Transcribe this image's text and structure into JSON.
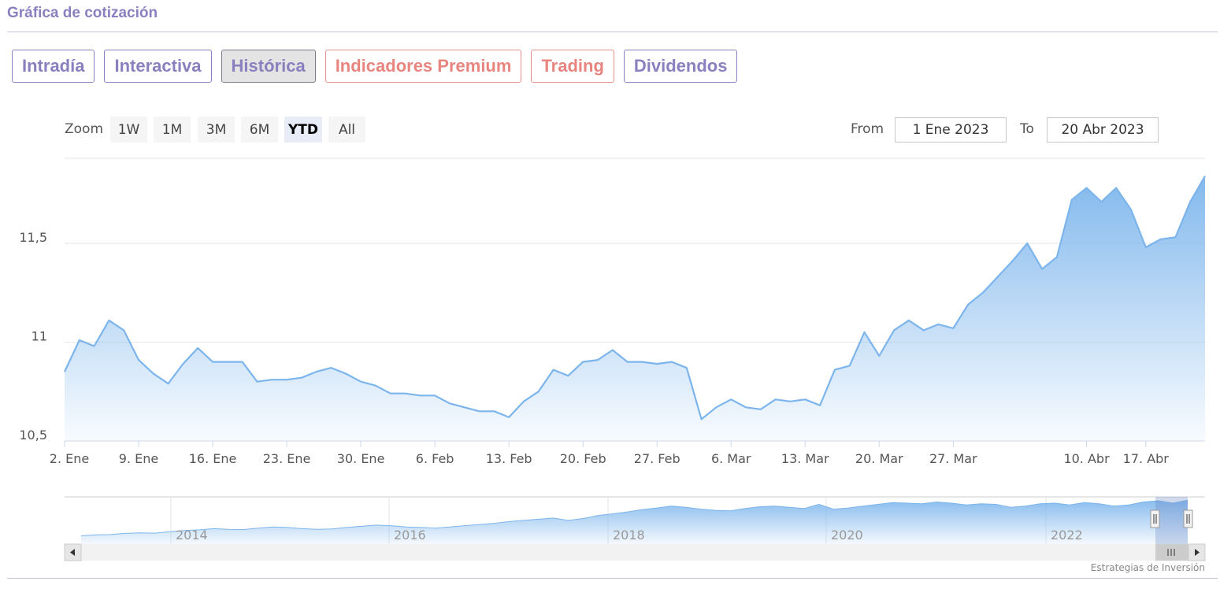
{
  "header": {
    "title": "Gráfica de cotización"
  },
  "tabs": [
    {
      "label": "Intradía",
      "active": false,
      "premium": false
    },
    {
      "label": "Interactiva",
      "active": false,
      "premium": false
    },
    {
      "label": "Histórica",
      "active": true,
      "premium": false
    },
    {
      "label": "Indicadores Premium",
      "active": false,
      "premium": true
    },
    {
      "label": "Trading",
      "active": false,
      "premium": true
    },
    {
      "label": "Dividendos",
      "active": false,
      "premium": false
    }
  ],
  "zoom": {
    "label": "Zoom",
    "buttons": [
      "1W",
      "1M",
      "3M",
      "6M",
      "YTD",
      "All"
    ],
    "selected": "YTD"
  },
  "range": {
    "from_label": "From",
    "from_value": "1 Ene 2023",
    "to_label": "To",
    "to_value": "20 Abr 2023"
  },
  "credits": "Estrategias de Inversión",
  "colors": {
    "accent": "#8a80bf",
    "premium": "#e8857f",
    "series": "#7cb5ec"
  },
  "chart_data": {
    "type": "area",
    "grid": true,
    "yticks": [
      "10,5",
      "11",
      "11,5"
    ],
    "ylim": [
      10.5,
      11.93
    ],
    "xticks": [
      {
        "label": "2. Ene",
        "idx": 0
      },
      {
        "label": "9. Ene",
        "idx": 5
      },
      {
        "label": "16. Ene",
        "idx": 10
      },
      {
        "label": "23. Ene",
        "idx": 15
      },
      {
        "label": "30. Ene",
        "idx": 20
      },
      {
        "label": "6. Feb",
        "idx": 25
      },
      {
        "label": "13. Feb",
        "idx": 30
      },
      {
        "label": "20. Feb",
        "idx": 35
      },
      {
        "label": "27. Feb",
        "idx": 40
      },
      {
        "label": "6. Mar",
        "idx": 45
      },
      {
        "label": "13. Mar",
        "idx": 50
      },
      {
        "label": "20. Mar",
        "idx": 55
      },
      {
        "label": "27. Mar",
        "idx": 60
      },
      {
        "label": "10. Abr",
        "idx": 69
      },
      {
        "label": "17. Abr",
        "idx": 73
      }
    ],
    "series": [
      {
        "values": [
          10.85,
          11.01,
          10.98,
          11.11,
          11.06,
          10.91,
          10.84,
          10.79,
          10.89,
          10.97,
          10.9,
          10.9,
          10.9,
          10.8,
          10.81,
          10.81,
          10.82,
          10.85,
          10.87,
          10.84,
          10.8,
          10.78,
          10.74,
          10.74,
          10.73,
          10.73,
          10.69,
          10.67,
          10.65,
          10.65,
          10.62,
          10.7,
          10.75,
          10.86,
          10.83,
          10.9,
          10.91,
          10.96,
          10.9,
          10.9,
          10.89,
          10.9,
          10.87,
          10.61,
          10.67,
          10.71,
          10.67,
          10.66,
          10.71,
          10.7,
          10.71,
          10.68,
          10.86,
          10.88,
          11.05,
          10.93,
          11.06,
          11.11,
          11.06,
          11.09,
          11.07,
          11.19,
          11.25,
          11.33,
          11.41,
          11.5,
          11.37,
          11.43,
          11.72,
          11.78,
          11.71,
          11.78,
          11.67,
          11.48,
          11.52,
          11.53,
          11.71,
          11.84
        ]
      }
    ],
    "navigator": {
      "years": [
        "2014",
        "2016",
        "2018",
        "2020",
        "2022"
      ],
      "values": [
        6.9,
        7.05,
        7.1,
        7.3,
        7.4,
        7.35,
        7.6,
        7.8,
        7.9,
        8.1,
        8.0,
        7.95,
        8.2,
        8.4,
        8.3,
        8.1,
        8.0,
        8.05,
        8.3,
        8.5,
        8.7,
        8.6,
        8.4,
        8.3,
        8.2,
        8.4,
        8.6,
        8.8,
        9.0,
        9.3,
        9.5,
        9.7,
        9.9,
        9.5,
        9.8,
        10.3,
        10.6,
        10.9,
        11.3,
        11.6,
        11.9,
        11.7,
        11.4,
        11.2,
        11.1,
        11.5,
        11.8,
        11.9,
        11.7,
        11.5,
        12.2,
        11.4,
        11.6,
        11.9,
        12.2,
        12.5,
        12.4,
        12.3,
        12.6,
        12.4,
        12.1,
        12.3,
        12.2,
        11.7,
        11.9,
        12.3,
        12.4,
        12.1,
        12.5,
        12.3,
        11.9,
        12.1,
        12.6,
        12.8,
        12.4,
        12.9
      ]
    }
  }
}
